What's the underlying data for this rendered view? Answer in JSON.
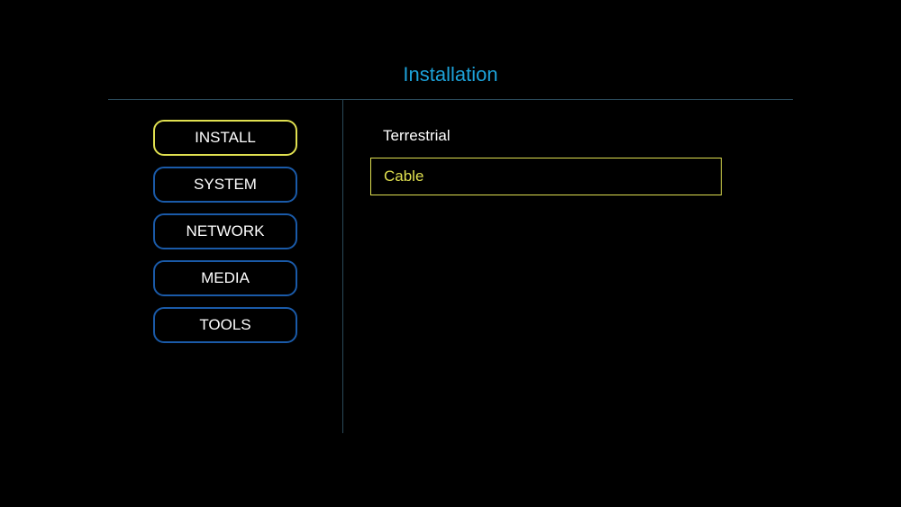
{
  "colors": {
    "background": "#000000",
    "title": "#1da1d8",
    "menu_border": "#1a5aa8",
    "menu_border_active": "#e0e050",
    "text": "#ffffff",
    "selected_text": "#e0e050",
    "selected_border": "#e0e050",
    "divider": "#2a4a5a"
  },
  "title": "Installation",
  "sidebar": {
    "items": [
      {
        "label": "INSTALL",
        "active": true
      },
      {
        "label": "SYSTEM",
        "active": false
      },
      {
        "label": "NETWORK",
        "active": false
      },
      {
        "label": "MEDIA",
        "active": false
      },
      {
        "label": "TOOLS",
        "active": false
      }
    ]
  },
  "main": {
    "options": [
      {
        "label": "Terrestrial",
        "selected": false
      },
      {
        "label": "Cable",
        "selected": true
      }
    ]
  }
}
